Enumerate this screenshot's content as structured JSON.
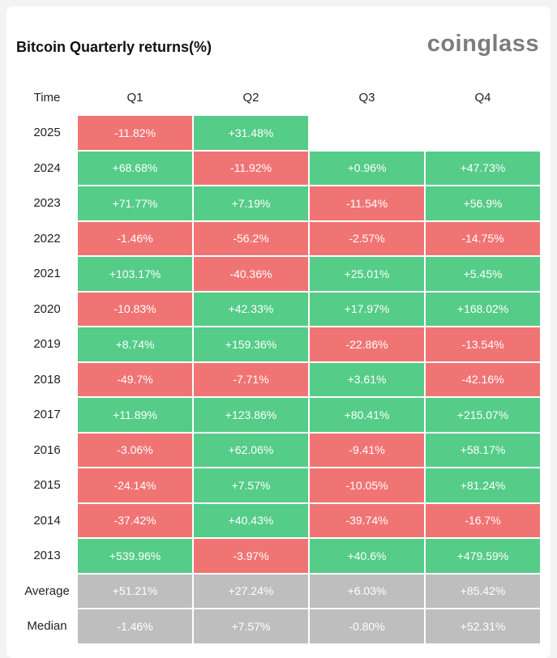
{
  "title": "Bitcoin Quarterly returns(%)",
  "brand": "coinglass",
  "colors": {
    "positive": "#55cc88",
    "negative": "#f17474",
    "summary": "#bebebe"
  },
  "chart_data": {
    "type": "table",
    "title": "Bitcoin Quarterly returns(%)",
    "columns": [
      "Time",
      "Q1",
      "Q2",
      "Q3",
      "Q4"
    ],
    "rows": [
      {
        "label": "2025",
        "values": [
          "-11.82%",
          "+31.48%",
          "",
          ""
        ]
      },
      {
        "label": "2024",
        "values": [
          "+68.68%",
          "-11.92%",
          "+0.96%",
          "+47.73%"
        ]
      },
      {
        "label": "2023",
        "values": [
          "+71.77%",
          "+7.19%",
          "-11.54%",
          "+56.9%"
        ]
      },
      {
        "label": "2022",
        "values": [
          "-1.46%",
          "-56.2%",
          "-2.57%",
          "-14.75%"
        ]
      },
      {
        "label": "2021",
        "values": [
          "+103.17%",
          "-40.36%",
          "+25.01%",
          "+5.45%"
        ]
      },
      {
        "label": "2020",
        "values": [
          "-10.83%",
          "+42.33%",
          "+17.97%",
          "+168.02%"
        ]
      },
      {
        "label": "2019",
        "values": [
          "+8.74%",
          "+159.36%",
          "-22.86%",
          "-13.54%"
        ]
      },
      {
        "label": "2018",
        "values": [
          "-49.7%",
          "-7.71%",
          "+3.61%",
          "-42.16%"
        ]
      },
      {
        "label": "2017",
        "values": [
          "+11.89%",
          "+123.86%",
          "+80.41%",
          "+215.07%"
        ]
      },
      {
        "label": "2016",
        "values": [
          "-3.06%",
          "+62.06%",
          "-9.41%",
          "+58.17%"
        ]
      },
      {
        "label": "2015",
        "values": [
          "-24.14%",
          "+7.57%",
          "-10.05%",
          "+81.24%"
        ]
      },
      {
        "label": "2014",
        "values": [
          "-37.42%",
          "+40.43%",
          "-39.74%",
          "-16.7%"
        ]
      },
      {
        "label": "2013",
        "values": [
          "+539.96%",
          "-3.97%",
          "+40.6%",
          "+479.59%"
        ]
      }
    ],
    "summary": [
      {
        "label": "Average",
        "values": [
          "+51.21%",
          "+27.24%",
          "+6.03%",
          "+85.42%"
        ]
      },
      {
        "label": "Median",
        "values": [
          "-1.46%",
          "+7.57%",
          "-0.80%",
          "+52.31%"
        ]
      }
    ]
  }
}
